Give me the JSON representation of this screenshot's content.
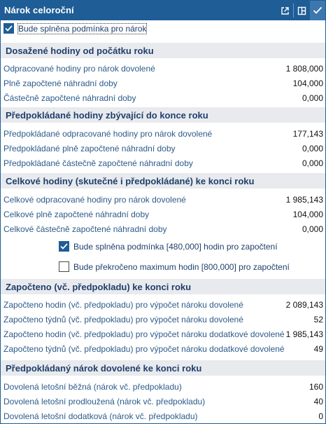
{
  "window": {
    "title": "Nárok celoroční",
    "buttons": [
      "open-external-icon",
      "dock-icon",
      "check-icon"
    ]
  },
  "top_checkbox": {
    "label": "Bude splněna podmínka pro nárok",
    "checked": true
  },
  "sections": [
    {
      "heading": "Dosažené hodiny od počátku roku",
      "rows": [
        {
          "label": "Odpracované hodiny pro nárok dovolené",
          "value": "1 808,000"
        },
        {
          "label": "Plně započtené náhradní doby",
          "value": "104,000"
        },
        {
          "label": "Částečně započtené náhradní doby",
          "value": "0,000"
        }
      ]
    },
    {
      "heading": "Předpokládané hodiny zbývající do konce roku",
      "rows": [
        {
          "label": "Předpokládané odpracované hodiny pro nárok dovolené",
          "value": "177,143"
        },
        {
          "label": "Předpokládané plně započtené náhradní doby",
          "value": "0,000"
        },
        {
          "label": "Předpokládané částečně započtené náhradní doby",
          "value": "0,000"
        }
      ]
    },
    {
      "heading": "Celkové hodiny (skutečné i předpokládané) ke konci roku",
      "rows": [
        {
          "label": "Celkové odpracované hodiny pro nárok dovolené",
          "value": "1 985,143"
        },
        {
          "label": "Celkové plně započtené náhradní doby",
          "value": "104,000"
        },
        {
          "label": "Celkové částečně započtené náhradní doby",
          "value": "0,000"
        }
      ],
      "checkboxes": [
        {
          "label": "Bude splněna podmínka [480,000] hodin pro započtení",
          "checked": true
        },
        {
          "label": "Bude překročeno maximum hodin [800,000] pro započtení",
          "checked": false
        }
      ]
    },
    {
      "heading": "Započteno (vč. předpokladu) ke konci roku",
      "rows": [
        {
          "label": "Započteno hodin (vč. předpokladu) pro výpočet nároku dovolené",
          "value": "2 089,143"
        },
        {
          "label": "Započteno týdnů (vč. předpokladu) pro výpočet nároku dovolené",
          "value": "52"
        },
        {
          "label": "Započteno hodin (vč. předpokladu) pro výpočet nároku dodatkové dovolené",
          "value": "1 985,143"
        },
        {
          "label": "Započteno týdnů (vč. předpokladu) pro výpočet nároku dodatkové dovolené",
          "value": "49"
        }
      ]
    },
    {
      "heading": "Předpokládaný nárok dovolené ke konci roku",
      "rows": [
        {
          "label": "Dovolená letošní běžná (nárok vč. předpokladu)",
          "value": "160"
        },
        {
          "label": "Dovolená letošní prodloužená (nárok vč. předpokladu)",
          "value": "40"
        },
        {
          "label": "Dovolená letošní dodatková (nárok vč. předpokladu)",
          "value": "0"
        }
      ]
    }
  ],
  "colors": {
    "accent": "#1e5d96",
    "section_bg": "#e8eaee",
    "label_text": "#2d5a8a",
    "heading_text": "#1f3f6b"
  }
}
